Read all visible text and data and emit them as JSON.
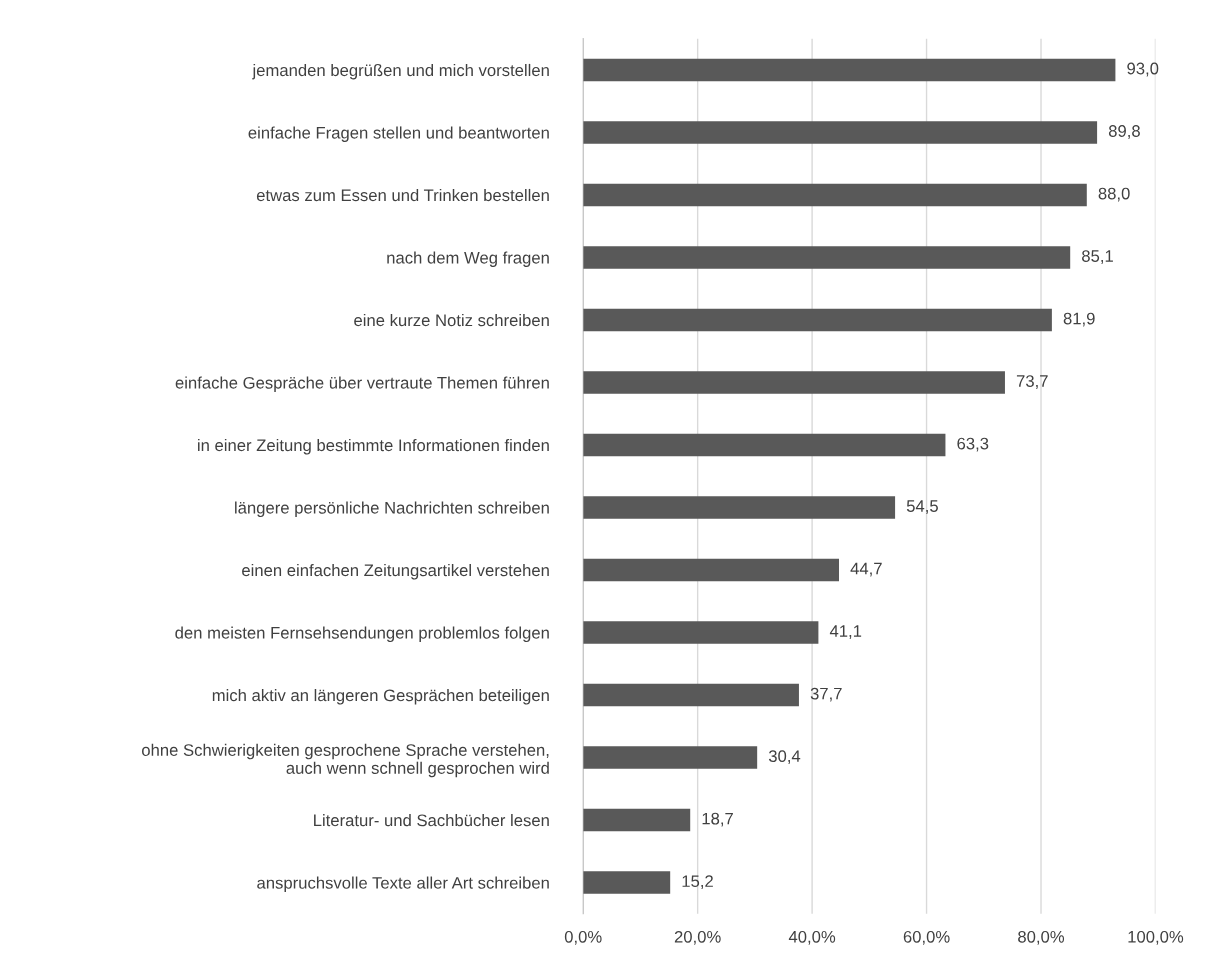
{
  "chart_data": {
    "type": "bar",
    "orientation": "horizontal",
    "categories": [
      "jemanden begrüßen und mich vorstellen",
      "einfache Fragen stellen und beantworten",
      "etwas zum Essen und Trinken bestellen",
      "nach dem Weg fragen",
      "eine kurze Notiz schreiben",
      "einfache Gespräche über vertraute Themen führen",
      "in einer Zeitung bestimmte Informationen finden",
      "längere persönliche Nachrichten schreiben",
      "einen einfachen Zeitungsartikel verstehen",
      "den meisten Fernsehsendungen problemlos folgen",
      "mich aktiv an längeren Gesprächen beteiligen",
      "ohne Schwierigkeiten gesprochene Sprache verstehen,\nauch wenn schnell gesprochen wird",
      "Literatur- und Sachbücher lesen",
      "anspruchsvolle Texte aller Art schreiben"
    ],
    "values": [
      93.0,
      89.8,
      88.0,
      85.1,
      81.9,
      73.7,
      63.3,
      54.5,
      44.7,
      41.1,
      37.7,
      30.4,
      18.7,
      15.2
    ],
    "value_labels": [
      "93,0",
      "89,8",
      "88,0",
      "85,1",
      "81,9",
      "73,7",
      "63,3",
      "54,5",
      "44,7",
      "41,1",
      "37,7",
      "30,4",
      "18,7",
      "15,2"
    ],
    "color": "#595959",
    "xlim": [
      0,
      100
    ],
    "xticks": [
      {
        "value": 0,
        "label": "0,0%"
      },
      {
        "value": 20,
        "label": "20,0%"
      },
      {
        "value": 40,
        "label": "40,0%"
      },
      {
        "value": 60,
        "label": "60,0%"
      },
      {
        "value": 80,
        "label": "80,0%"
      },
      {
        "value": 100,
        "label": "100,0%"
      }
    ],
    "grid": "x"
  }
}
